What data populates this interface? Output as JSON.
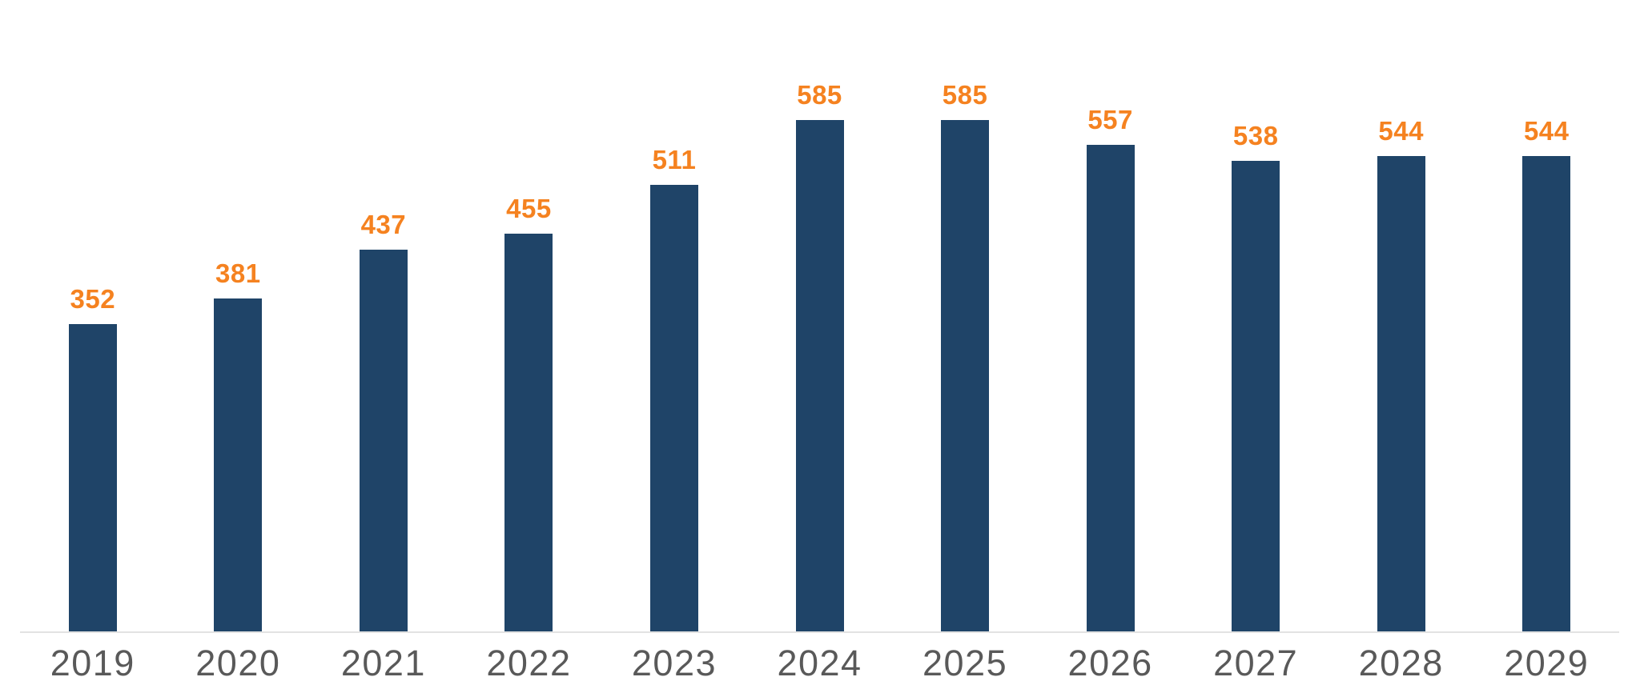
{
  "chart_data": {
    "type": "bar",
    "categories": [
      "2019",
      "2020",
      "2021",
      "2022",
      "2023",
      "2024",
      "2025",
      "2026",
      "2027",
      "2028",
      "2029"
    ],
    "values": [
      352,
      381,
      437,
      455,
      511,
      585,
      585,
      557,
      538,
      544,
      544
    ],
    "value_labels": [
      "352",
      "381",
      "437",
      "455",
      "511",
      "585",
      "585",
      "557",
      "538",
      "544",
      "544"
    ],
    "xlabel": "",
    "ylabel": "",
    "grid": false,
    "legend": false,
    "layout_hints": {
      "value_labels_position": "above-bars",
      "x_axis_line": true,
      "y_axis": "hidden"
    },
    "colors": {
      "bar": "#1F4468",
      "value_label": "#F58220",
      "category_label": "#595959",
      "axis_line": "#E2E2E2",
      "background": "#FFFFFF"
    }
  }
}
